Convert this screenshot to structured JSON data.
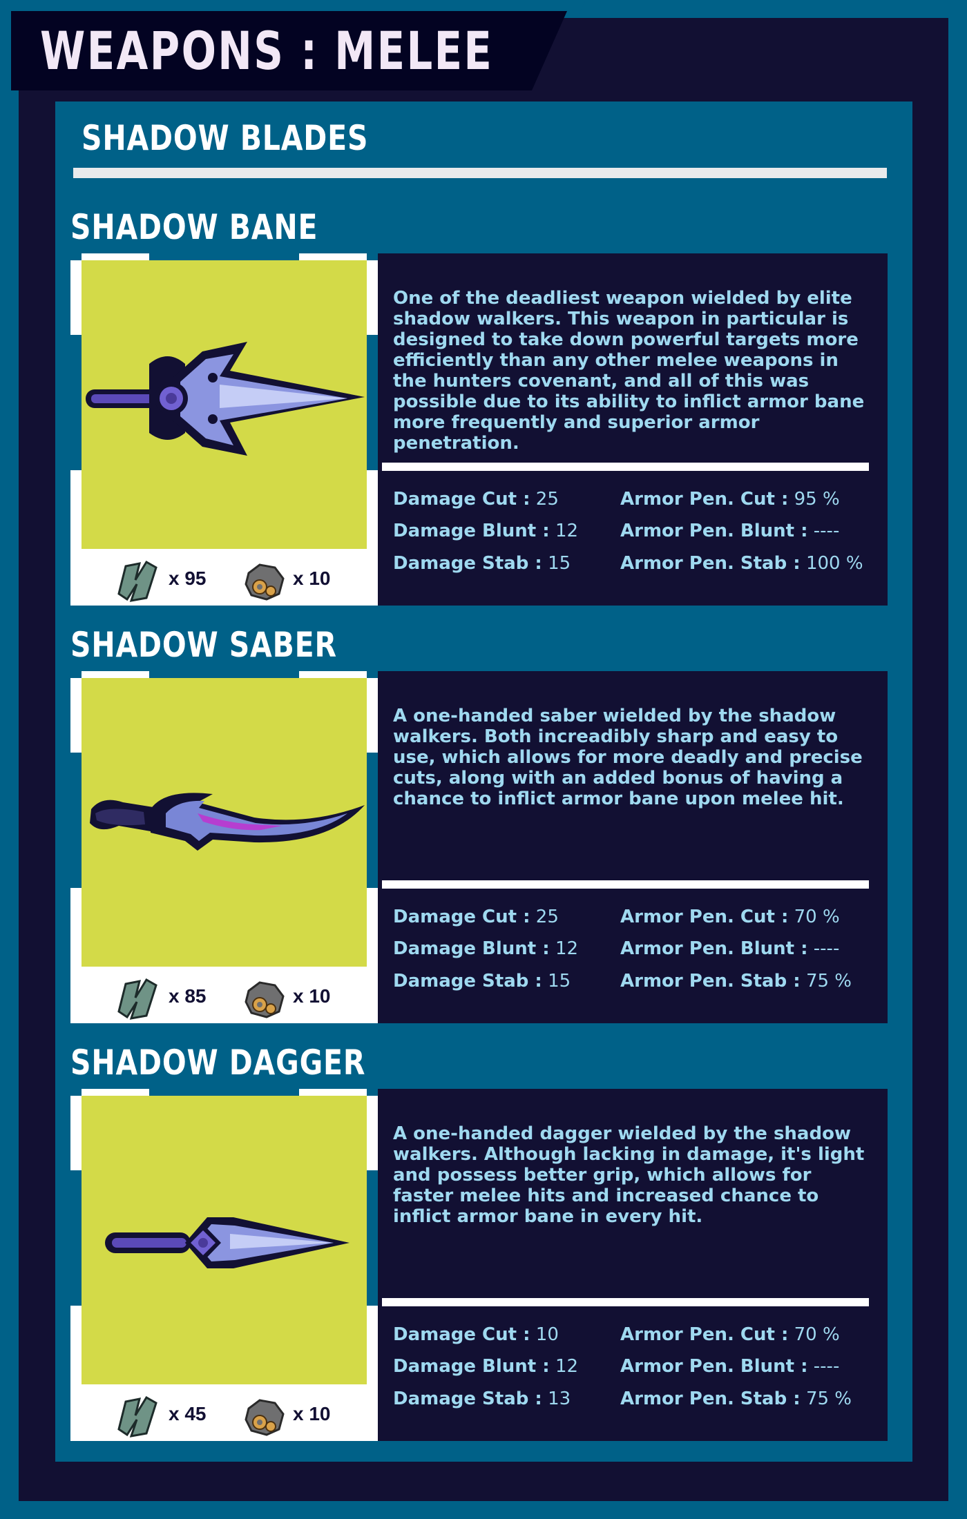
{
  "page": {
    "title": "WEAPONS : MELEE"
  },
  "section": {
    "title": "SHADOW BLADES"
  },
  "colors": {
    "accent": "#006188",
    "dark": "#121033",
    "image_bg": "#d3da48",
    "text": "#9fd9f0"
  },
  "items": [
    {
      "name": "SHADOW BANE",
      "weapon_icon": "shadow-bane-sword-icon",
      "description": "One of the deadliest weapon wielded by elite shadow walkers. This weapon in particular is designed to take down powerful targets more efficiently than any other melee weapons in the hunters covenant, and all of this was possible due to its ability to inflict armor bane more frequently and superior armor penetration.",
      "cost": {
        "scrap_icon": "scrap-metal-icon",
        "scrap": "x 95",
        "gear_icon": "gears-icon",
        "gears": "x 10"
      },
      "stats": {
        "damage_cut_label": "Damage Cut :",
        "damage_cut": "25",
        "damage_blunt_label": "Damage Blunt :",
        "damage_blunt": "12",
        "damage_stab_label": "Damage Stab :",
        "damage_stab": "15",
        "pen_cut_label": "Armor Pen. Cut :",
        "pen_cut": "95 %",
        "pen_blunt_label": "Armor Pen. Blunt :",
        "pen_blunt": "----",
        "pen_stab_label": "Armor Pen. Stab :",
        "pen_stab": "100 %"
      }
    },
    {
      "name": "SHADOW SABER",
      "weapon_icon": "shadow-saber-icon",
      "description": "A one-handed saber wielded by the shadow walkers. Both increadibly sharp and easy to use, which allows for more deadly and precise cuts, along with an added bonus of having a chance to inflict armor bane upon melee hit.",
      "cost": {
        "scrap_icon": "scrap-metal-icon",
        "scrap": "x 85",
        "gear_icon": "gears-icon",
        "gears": "x 10"
      },
      "stats": {
        "damage_cut_label": "Damage Cut :",
        "damage_cut": "25",
        "damage_blunt_label": "Damage Blunt :",
        "damage_blunt": "12",
        "damage_stab_label": "Damage Stab :",
        "damage_stab": "15",
        "pen_cut_label": "Armor Pen. Cut :",
        "pen_cut": "70 %",
        "pen_blunt_label": "Armor Pen. Blunt :",
        "pen_blunt": "----",
        "pen_stab_label": "Armor Pen. Stab :",
        "pen_stab": "75 %"
      }
    },
    {
      "name": "SHADOW DAGGER",
      "weapon_icon": "shadow-dagger-icon",
      "description": "A one-handed dagger wielded by the shadow walkers. Although lacking in damage, it's light and possess better grip, which allows for faster melee hits and increased chance to inflict armor bane in every hit.",
      "cost": {
        "scrap_icon": "scrap-metal-icon",
        "scrap": "x 45",
        "gear_icon": "gears-icon",
        "gears": "x 10"
      },
      "stats": {
        "damage_cut_label": "Damage Cut :",
        "damage_cut": "10",
        "damage_blunt_label": "Damage Blunt :",
        "damage_blunt": "12",
        "damage_stab_label": "Damage Stab :",
        "damage_stab": "13",
        "pen_cut_label": "Armor Pen. Cut :",
        "pen_cut": "70 %",
        "pen_blunt_label": "Armor Pen. Blunt :",
        "pen_blunt": "----",
        "pen_stab_label": "Armor Pen. Stab :",
        "pen_stab": "75 %"
      }
    }
  ]
}
